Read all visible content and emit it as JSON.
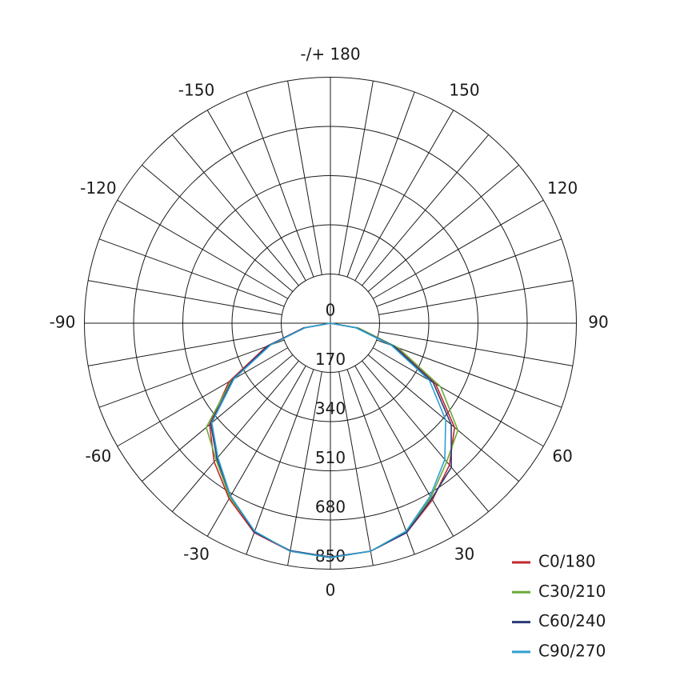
{
  "chart_data": {
    "type": "polar",
    "x": [
      -90,
      -80,
      -70,
      -60,
      -50,
      -40,
      -30,
      -20,
      -10,
      0,
      10,
      20,
      30,
      40,
      50,
      60,
      70,
      80,
      90
    ],
    "series": [
      {
        "name": "C0/180",
        "color": "#c0282d",
        "values": [
          0,
          95,
          235,
          405,
          545,
          625,
          700,
          770,
          800,
          810,
          800,
          770,
          705,
          640,
          560,
          420,
          240,
          95,
          0
        ]
      },
      {
        "name": "C30/210",
        "color": "#6aaa3a",
        "values": [
          0,
          90,
          225,
          395,
          560,
          615,
          695,
          765,
          800,
          810,
          800,
          765,
          695,
          625,
          575,
          440,
          250,
          100,
          0
        ]
      },
      {
        "name": "C60/240",
        "color": "#2b3a7a",
        "values": [
          0,
          92,
          230,
          390,
          540,
          610,
          690,
          768,
          798,
          808,
          800,
          770,
          700,
          650,
          545,
          410,
          235,
          92,
          0
        ]
      },
      {
        "name": "C90/270",
        "color": "#2f9fd0",
        "values": [
          0,
          88,
          220,
          385,
          535,
          605,
          690,
          765,
          800,
          810,
          800,
          765,
          690,
          615,
          520,
          395,
          225,
          88,
          0
        ]
      }
    ],
    "rlim": [
      0,
      850
    ],
    "rticks": [
      0,
      170,
      340,
      510,
      680,
      850
    ],
    "thetaticks": [
      0,
      30,
      60,
      90,
      120,
      150,
      {
        "value": 180,
        "label": "-/+ 180"
      },
      -150,
      -120,
      -90,
      -60,
      -30
    ]
  }
}
